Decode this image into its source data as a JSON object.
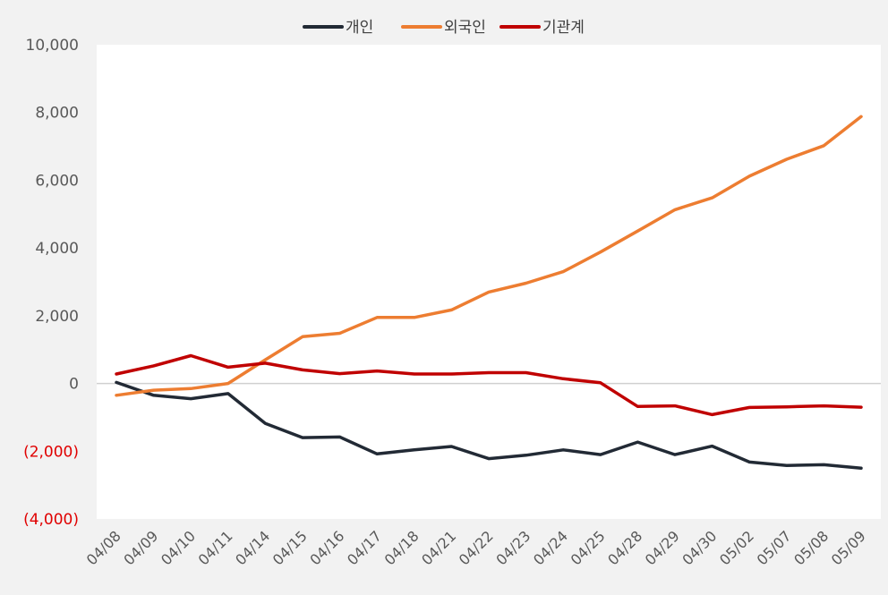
{
  "chart_data": {
    "type": "line",
    "categories": [
      "04/08",
      "04/09",
      "04/10",
      "04/11",
      "04/14",
      "04/15",
      "04/16",
      "04/17",
      "04/18",
      "04/21",
      "04/22",
      "04/23",
      "04/24",
      "04/25",
      "04/28",
      "04/29",
      "04/30",
      "05/02",
      "05/07",
      "05/08",
      "05/09"
    ],
    "series": [
      {
        "name": "개인",
        "color": "#222a35",
        "values": [
          30,
          -350,
          -450,
          -300,
          -1180,
          -1600,
          -1580,
          -2080,
          -1960,
          -1860,
          -2220,
          -2120,
          -1960,
          -2100,
          -1730,
          -2100,
          -1850,
          -2320,
          -2420,
          -2400,
          -2500
        ]
      },
      {
        "name": "외국인",
        "color": "#ed7d31",
        "values": [
          -350,
          -200,
          -150,
          0,
          700,
          1380,
          1480,
          1950,
          1950,
          2170,
          2700,
          2960,
          3300,
          3880,
          4500,
          5130,
          5480,
          6120,
          6620,
          7020,
          7880
        ]
      },
      {
        "name": "기관계",
        "color": "#c00000",
        "values": [
          280,
          520,
          820,
          480,
          600,
          400,
          290,
          370,
          280,
          280,
          320,
          320,
          140,
          20,
          -680,
          -660,
          -920,
          -710,
          -690,
          -660,
          -700
        ]
      }
    ],
    "yticks": [
      {
        "value": 10000,
        "label": "10,000"
      },
      {
        "value": 8000,
        "label": "8,000"
      },
      {
        "value": 6000,
        "label": "6,000"
      },
      {
        "value": 4000,
        "label": "4,000"
      },
      {
        "value": 2000,
        "label": "2,000"
      },
      {
        "value": 0,
        "label": "0"
      },
      {
        "value": -2000,
        "label": "(2,000)"
      },
      {
        "value": -4000,
        "label": "(4,000)"
      }
    ],
    "ylim": [
      -4000,
      10000
    ],
    "negative_tick_color": "#e00000",
    "grid": false,
    "legend_position": "top-center"
  }
}
